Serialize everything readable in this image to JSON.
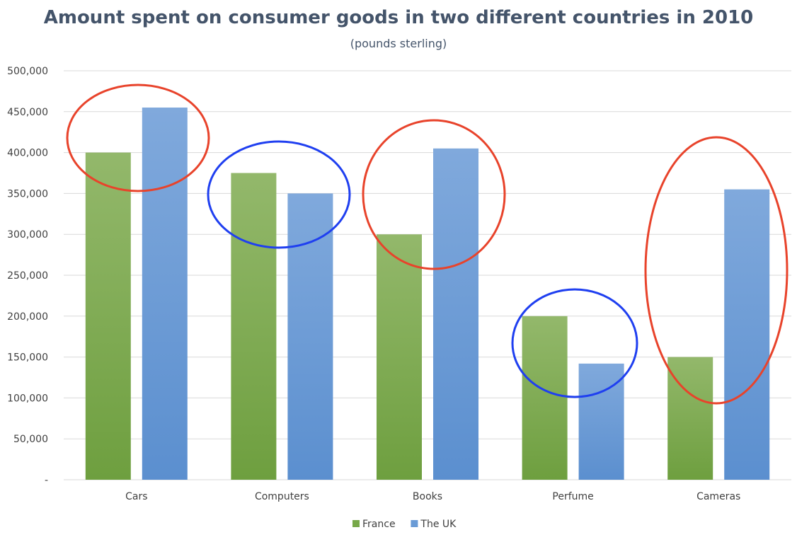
{
  "chart_data": {
    "type": "bar",
    "title": "Amount spent on consumer goods in two different countries in 2010",
    "subtitle": "(pounds sterling)",
    "categories": [
      "Cars",
      "Computers",
      "Books",
      "Perfume",
      "Cameras"
    ],
    "series": [
      {
        "name": "France",
        "values": [
          400000,
          375000,
          300000,
          200000,
          150000
        ],
        "color": "#77a849"
      },
      {
        "name": "The UK",
        "values": [
          455000,
          350000,
          405000,
          142000,
          355000
        ],
        "color": "#6a9bd6"
      }
    ],
    "ylim": [
      0,
      500000
    ],
    "yticks": [
      0,
      50000,
      100000,
      150000,
      200000,
      250000,
      300000,
      350000,
      400000,
      450000,
      500000
    ],
    "ytick_labels": [
      "-",
      "50,000",
      "100,000",
      "150,000",
      "200,000",
      "250,000",
      "300,000",
      "350,000",
      "400,000",
      "450,000",
      "500,000"
    ],
    "grid": true,
    "legend_position": "bottom",
    "annotations": [
      {
        "shape": "ellipse",
        "color": "#e8432b",
        "category": "Cars"
      },
      {
        "shape": "ellipse",
        "color": "#1f3ff0",
        "category": "Computers"
      },
      {
        "shape": "ellipse",
        "color": "#e8432b",
        "category": "Books"
      },
      {
        "shape": "ellipse",
        "color": "#1f3ff0",
        "category": "Perfume"
      },
      {
        "shape": "ellipse",
        "color": "#e8432b",
        "category": "Cameras"
      }
    ]
  }
}
